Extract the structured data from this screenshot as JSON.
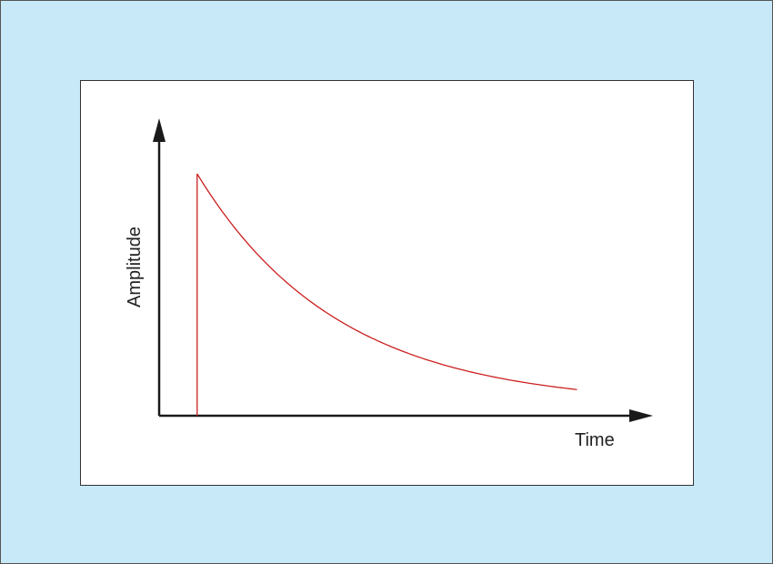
{
  "chart_data": {
    "type": "line",
    "title": "",
    "xlabel": "Time",
    "ylabel": "Amplitude",
    "grid": false,
    "legend": "none",
    "ticks": false,
    "description_of_shape": "",
    "series": [
      {
        "color": "#cc1f1f",
        "x": [
          0.0,
          0.05,
          0.1,
          0.15,
          0.2,
          0.25,
          0.3,
          0.35,
          0.4,
          0.45,
          0.5,
          0.55,
          0.6,
          0.65,
          0.7,
          0.75,
          0.8,
          0.85,
          0.9,
          0.95,
          1.0
        ],
        "y": [
          1.0,
          0.87,
          0.757,
          0.659,
          0.574,
          0.5,
          0.435,
          0.379,
          0.33,
          0.288,
          0.251,
          0.219,
          0.191,
          0.167,
          0.146,
          0.128,
          0.112,
          0.099,
          0.087,
          0.077,
          0.068
        ]
      }
    ],
    "impulse_line": {
      "color": "#cc1f1f"
    },
    "xlim": [
      -0.1,
      1.2
    ],
    "ylim": [
      -0.045,
      1.24
    ]
  },
  "colors": {
    "background": "#c7e9f8",
    "panel": "#ffffff",
    "axis": "#1a1a1a",
    "curve": "#cc1f1f"
  }
}
